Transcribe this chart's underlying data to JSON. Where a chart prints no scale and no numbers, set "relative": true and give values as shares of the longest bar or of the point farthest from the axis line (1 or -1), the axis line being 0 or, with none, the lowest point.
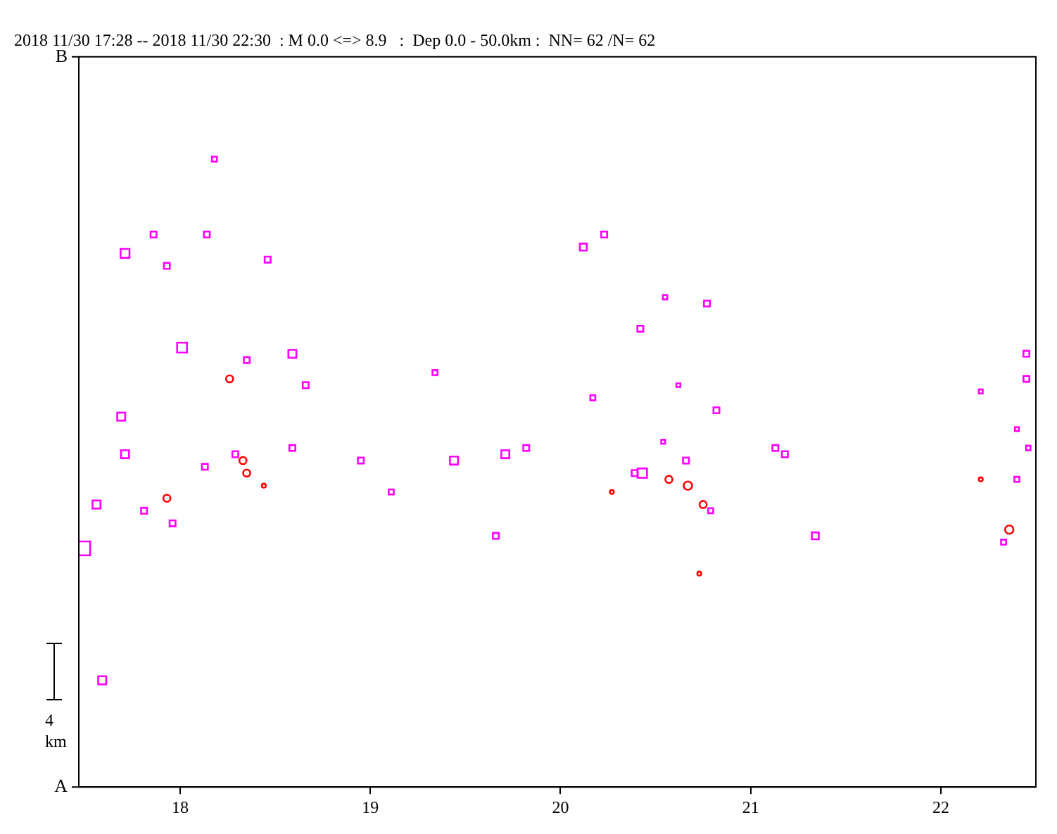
{
  "chart_data": {
    "type": "bubble",
    "title": "2018 11/30 17:28 -- 2018 11/30 22:30  : M 0.0 <=> 8.9   :  Dep 0.0 - 50.0km :  NN= 62 /N= 62",
    "xlim": [
      17.467,
      22.5
    ],
    "xticks": [
      18,
      19,
      20,
      21,
      22
    ],
    "relative": true,
    "grid": false,
    "legend": false,
    "annotations": [
      "B",
      "A",
      "4 km"
    ],
    "series": [
      {
        "color": "#ff00ff",
        "marker": "square",
        "x": [
          18.18,
          17.86,
          18.14,
          17.71,
          17.93,
          18.46,
          18.01,
          18.59,
          18.35,
          18.66,
          17.69,
          17.71,
          18.29,
          18.13,
          18.59,
          17.56,
          17.81,
          17.96,
          17.49,
          17.59,
          20.23,
          20.12,
          19.34,
          20.17,
          19.82,
          18.95,
          19.44,
          19.71,
          19.11,
          19.66,
          20.55,
          20.77,
          20.42,
          20.62,
          20.82,
          20.54,
          21.13,
          21.18,
          20.66,
          20.39,
          20.43,
          20.79,
          21.34,
          22.45,
          22.45,
          22.21,
          22.4,
          22.46,
          22.4,
          22.33
        ],
        "values": [
          1,
          0.88,
          0.88,
          0.85,
          0.83,
          0.84,
          0.7,
          0.69,
          0.68,
          0.64,
          0.59,
          0.53,
          0.53,
          0.51,
          0.54,
          0.45,
          0.44,
          0.42,
          0.38,
          0.17,
          0.88,
          0.86,
          0.66,
          0.62,
          0.54,
          0.52,
          0.52,
          0.53,
          0.47,
          0.4,
          0.78,
          0.77,
          0.73,
          0.64,
          0.6,
          0.55,
          0.54,
          0.53,
          0.52,
          0.5,
          0.5,
          0.44,
          0.4,
          0.69,
          0.65,
          0.63,
          0.57,
          0.54,
          0.49,
          0.39
        ],
        "sizes": [
          0.13,
          0.18,
          0.18,
          0.41,
          0.18,
          0.18,
          0.5,
          0.33,
          0.18,
          0.18,
          0.33,
          0.33,
          0.18,
          0.18,
          0.18,
          0.33,
          0.18,
          0.18,
          1,
          0.33,
          0.18,
          0.25,
          0.13,
          0.13,
          0.18,
          0.18,
          0.33,
          0.33,
          0.13,
          0.18,
          0.1,
          0.18,
          0.18,
          0.08,
          0.18,
          0.08,
          0.18,
          0.18,
          0.18,
          0.18,
          0.45,
          0.13,
          0.25,
          0.18,
          0.18,
          0.08,
          0.08,
          0.1,
          0.13,
          0.13
        ]
      },
      {
        "color": "#ff0000",
        "marker": "circle",
        "x": [
          18.26,
          18.33,
          18.35,
          18.44,
          17.93,
          20.27,
          20.57,
          20.67,
          20.75,
          20.73,
          22.21,
          22.36
        ],
        "values": [
          0.65,
          0.52,
          0.5,
          0.48,
          0.46,
          0.47,
          0.49,
          0.48,
          0.45,
          0.34,
          0.49,
          0.41
        ],
        "sizes": [
          0.13,
          0.13,
          0.13,
          0.04,
          0.13,
          0.04,
          0.13,
          0.18,
          0.13,
          0.04,
          0.04,
          0.18
        ]
      }
    ]
  }
}
